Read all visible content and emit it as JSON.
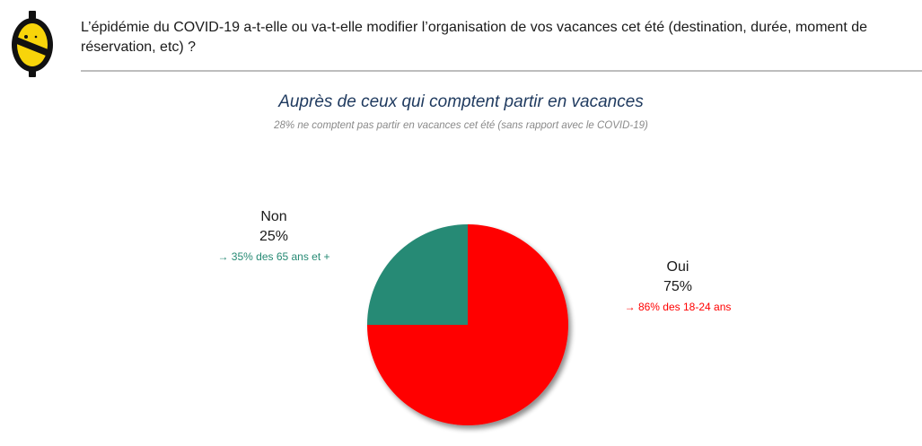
{
  "header": {
    "question": "L’épidémie du COVID-19 a-t-elle ou va-t-elle modifier l’organisation de vos vacances cet été (destination, durée, moment de réservation, etc) ?"
  },
  "colors": {
    "oui": "#ff0000",
    "non": "#268a74",
    "title": "#1f3a5f",
    "subtitle": "#8a8a8a",
    "logo_yellow": "#f7d40a"
  },
  "chart_data": {
    "type": "pie",
    "title": "Auprès de ceux qui comptent partir en vacances",
    "subtitle": "28% ne comptent pas partir en vacances cet été (sans rapport avec le COVID-19)",
    "slices": [
      {
        "label": "Oui",
        "value": 75,
        "value_label": "75%",
        "note": "→ 86% des 18-24 ans",
        "color": "#ff0000"
      },
      {
        "label": "Non",
        "value": 25,
        "value_label": "25%",
        "note": "→ 35% des 65 ans et +",
        "color": "#268a74"
      }
    ]
  }
}
